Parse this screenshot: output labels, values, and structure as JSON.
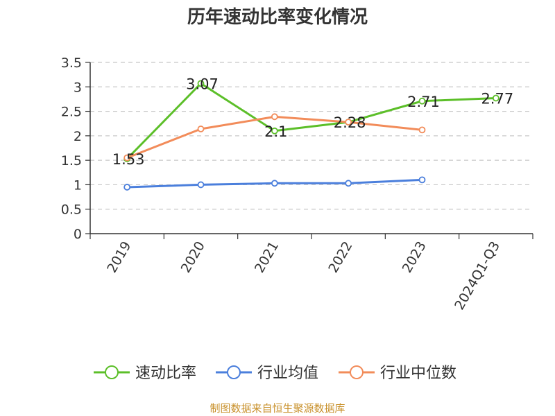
{
  "title": "历年速动比率变化情况",
  "source": "制图数据来自恒生聚源数据库",
  "chart_data": {
    "type": "line",
    "title": "历年速动比率变化情况",
    "categories": [
      "2019",
      "2020",
      "2021",
      "2022",
      "2023",
      "2024Q1-Q3"
    ],
    "ylim": [
      0,
      3.5
    ],
    "yticks": [
      0,
      0.5,
      1,
      1.5,
      2,
      2.5,
      3,
      3.5
    ],
    "grid": true,
    "legend_position": "bottom",
    "series": [
      {
        "name": "速动比率",
        "color": "#5cbf29",
        "values": [
          1.53,
          3.07,
          2.1,
          2.28,
          2.71,
          2.77
        ],
        "labels": [
          "1.53",
          "3.07",
          "2.1",
          "2.28",
          "2.71",
          "2.77"
        ]
      },
      {
        "name": "行业均值",
        "color": "#4b7fdc",
        "values": [
          0.95,
          1.0,
          1.03,
          1.03,
          1.1,
          null
        ]
      },
      {
        "name": "行业中位数",
        "color": "#f28c5a",
        "values": [
          1.55,
          2.14,
          2.39,
          2.28,
          2.12,
          null
        ]
      }
    ]
  }
}
